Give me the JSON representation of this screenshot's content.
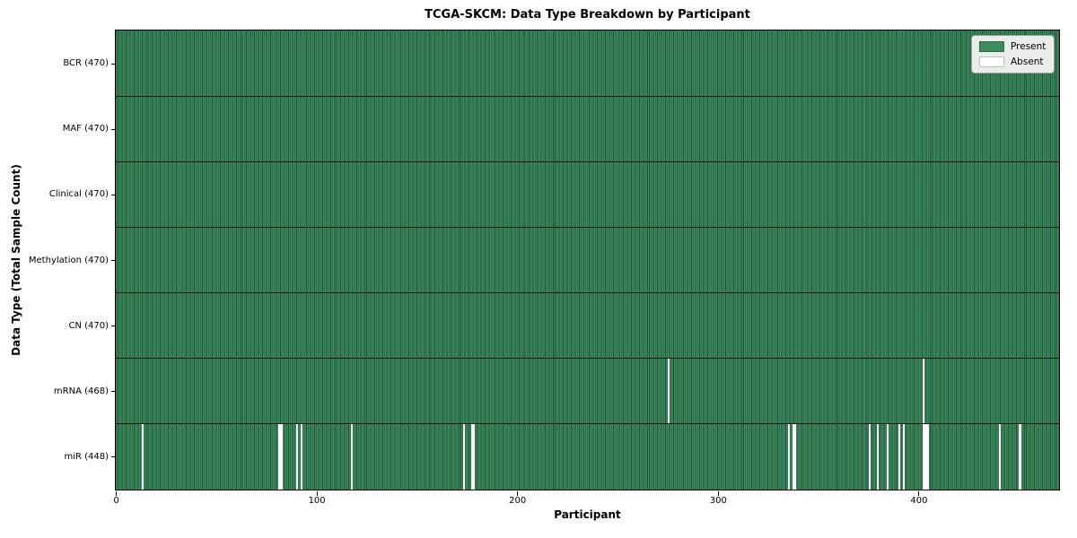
{
  "figure": {
    "title": "TCGA-SKCM: Data Type Breakdown by Participant",
    "xlabel": "Participant",
    "ylabel": "Data Type (Total Sample Count)"
  },
  "legend": {
    "items": [
      {
        "label": "Present",
        "color": "#3d8c5f"
      },
      {
        "label": "Absent",
        "color": "#ffffff"
      }
    ]
  },
  "chart_data": {
    "type": "heatmap",
    "title": "TCGA-SKCM: Data Type Breakdown by Participant",
    "xlabel": "Participant",
    "ylabel": "Data Type (Total Sample Count)",
    "n_participants": 470,
    "xlim": [
      0,
      470
    ],
    "x_ticks": [
      0,
      100,
      200,
      300,
      400
    ],
    "legend_position": "upper right",
    "grid": false,
    "rows": [
      {
        "label": "BCR (470)",
        "data_type": "BCR",
        "present_count": 470,
        "absent_participants": []
      },
      {
        "label": "MAF (470)",
        "data_type": "MAF",
        "present_count": 470,
        "absent_participants": []
      },
      {
        "label": "Clinical (470)",
        "data_type": "Clinical",
        "present_count": 470,
        "absent_participants": []
      },
      {
        "label": "Methylation (470)",
        "data_type": "Methylation",
        "present_count": 470,
        "absent_participants": []
      },
      {
        "label": "CN (470)",
        "data_type": "CN",
        "present_count": 470,
        "absent_participants": []
      },
      {
        "label": "mRNA (468)",
        "data_type": "mRNA",
        "present_count": 468,
        "absent_participants": [
          275,
          402
        ]
      },
      {
        "label": "miR (448)",
        "data_type": "miR",
        "present_count": 448,
        "absent_participants": [
          13,
          81,
          82,
          90,
          92,
          117,
          173,
          177,
          178,
          335,
          337,
          338,
          375,
          379,
          384,
          390,
          392,
          402,
          403,
          404,
          440,
          450
        ]
      }
    ],
    "colors": {
      "present_fill": "#3d8c5f",
      "present_edge": "#1e5134",
      "absent_fill": "#ffffff",
      "row_separator": "#101a12",
      "frame": "#000000"
    }
  }
}
